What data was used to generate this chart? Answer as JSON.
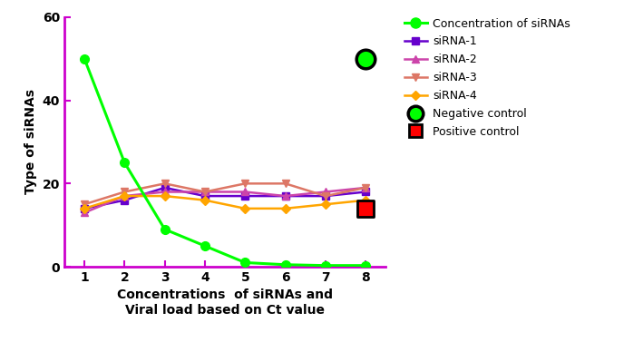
{
  "x": [
    1,
    2,
    3,
    4,
    5,
    6,
    7,
    8
  ],
  "concentration": [
    50,
    25,
    9,
    5,
    1,
    0.5,
    0.3,
    0.3
  ],
  "sirna1": [
    14,
    16,
    19,
    17,
    17,
    17,
    17,
    18
  ],
  "sirna2": [
    13,
    17,
    18,
    18,
    18,
    17,
    18,
    19
  ],
  "sirna3": [
    15,
    18,
    20,
    18,
    20,
    20,
    17,
    19
  ],
  "sirna4": [
    14,
    17,
    17,
    16,
    14,
    14,
    15,
    16
  ],
  "negative_control_x": 8,
  "negative_control_y": 50,
  "positive_control_x": 8,
  "positive_control_y": 14,
  "color_concentration": "#00FF00",
  "color_sirna1": "#6600CC",
  "color_sirna2": "#CC44AA",
  "color_sirna3": "#DD7766",
  "color_sirna4": "#FFA500",
  "color_neg_ctrl_fill": "#00FF00",
  "color_neg_ctrl_edge": "#000000",
  "color_pos_ctrl_fill": "#FF0000",
  "color_pos_ctrl_edge": "#000000",
  "color_axis": "#CC00CC",
  "xlabel": "Concentrations  of siRNAs and\nViral load based on Ct value",
  "ylabel": "Type of siRNAs",
  "ylim": [
    0,
    60
  ],
  "xlim": [
    0.5,
    8.5
  ],
  "yticks": [
    0,
    20,
    40,
    60
  ],
  "xticks": [
    1,
    2,
    3,
    4,
    5,
    6,
    7,
    8
  ],
  "legend_labels": [
    "Concentration of siRNAs",
    "siRNA-1",
    "siRNA-2",
    "siRNA-3",
    "siRNA-4",
    "Negative control",
    "Positive control"
  ],
  "figsize": [
    7.09,
    3.77
  ],
  "dpi": 100
}
